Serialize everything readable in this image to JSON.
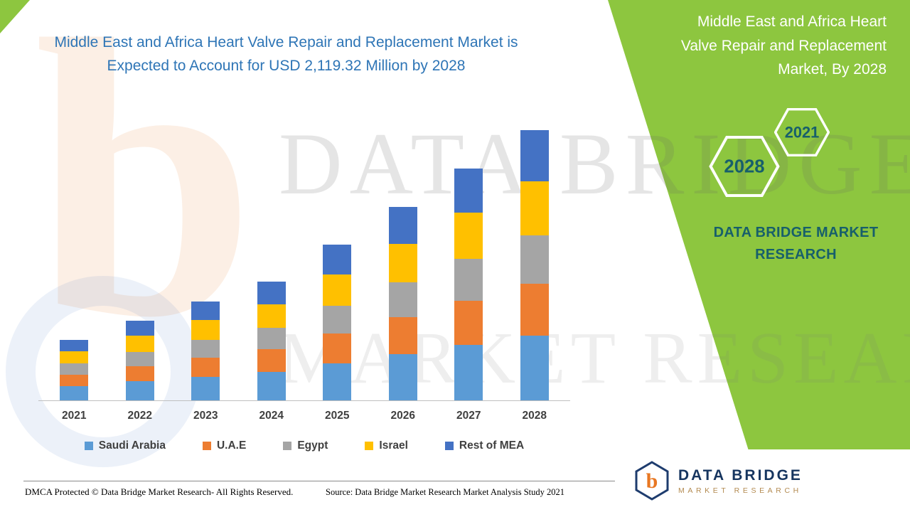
{
  "left": {
    "title": "Middle East and Africa Heart Valve Repair and Replacement Market is Expected to Account for USD 2,119.32 Million by 2028"
  },
  "panel": {
    "title": "Middle East and Africa Heart Valve Repair and Replacement Market, By 2028",
    "hexagon_top": "2021",
    "hexagon_bottom": "2028",
    "brand_text": "DATA BRIDGE MARKET RESEARCH",
    "bg_color": "#8DC63F",
    "teal_color": "#175F6B"
  },
  "watermark": {
    "letter": "b",
    "line1": "DATA BRIDGE",
    "line2": "MARKET RESEARCH"
  },
  "footer": {
    "dmca": "DMCA Protected © Data Bridge Market Research- All Rights Reserved.",
    "source": "Source: Data Bridge Market Research Market Analysis Study 2021"
  },
  "logo": {
    "glyph": "b",
    "name": "DATA BRIDGE",
    "subtitle": "MARKET RESEARCH"
  },
  "chart_data": {
    "type": "bar",
    "stacked": true,
    "title": "Middle East and Africa Heart Valve Repair and Replacement Market is Expected to Account for USD 2,119.32 Million by 2028",
    "unit": "USD Million",
    "categories": [
      "2021",
      "2022",
      "2023",
      "2024",
      "2025",
      "2026",
      "2027",
      "2028"
    ],
    "series": [
      {
        "name": "Saudi Arabia",
        "color": "#5B9BD5",
        "values": [
          114,
          150,
          186,
          223,
          293,
          364,
          436,
          509
        ]
      },
      {
        "name": "U.A.E",
        "color": "#ED7D31",
        "values": [
          90,
          119,
          147,
          177,
          232,
          288,
          345,
          403
        ]
      },
      {
        "name": "Egypt",
        "color": "#A5A5A5",
        "values": [
          85,
          113,
          140,
          168,
          220,
          273,
          327,
          381
        ]
      },
      {
        "name": "Israel",
        "color": "#FFC000",
        "values": [
          95,
          125,
          155,
          186,
          244,
          303,
          364,
          424
        ]
      },
      {
        "name": "Rest of MEA",
        "color": "#4472C4",
        "values": [
          90,
          118,
          147,
          177,
          232,
          289,
          346,
          402.32
        ]
      }
    ],
    "ylim": [
      0,
      2200
    ],
    "gridlines": false,
    "legend_position": "bottom",
    "xlabel": "",
    "ylabel": ""
  }
}
